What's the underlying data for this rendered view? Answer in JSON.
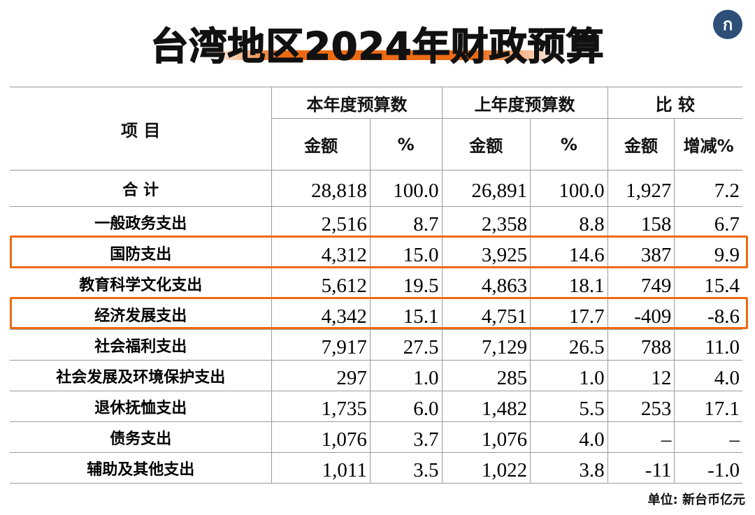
{
  "title": "台湾地区2024年财政预算",
  "unit": "单位: 新台币亿元",
  "highlight_color": "#ec6a14",
  "chart_data": {
    "type": "table",
    "header": {
      "item": "项 目",
      "groups": [
        "本年度预算数",
        "上年度预算数",
        "比 较"
      ],
      "sub": [
        "金额",
        "%",
        "金额",
        "%",
        "金额",
        "增减%"
      ]
    },
    "rows": [
      {
        "item": "合 计",
        "values": [
          "28,818",
          "100.0",
          "26,891",
          "100.0",
          "1,927",
          "7.2"
        ]
      },
      {
        "item": "一般政务支出",
        "values": [
          "2,516",
          "8.7",
          "2,358",
          "8.8",
          "158",
          "6.7"
        ]
      },
      {
        "item": "国防支出",
        "values": [
          "4,312",
          "15.0",
          "3,925",
          "14.6",
          "387",
          "9.9"
        ],
        "highlighted": true
      },
      {
        "item": "教育科学文化支出",
        "values": [
          "5,612",
          "19.5",
          "4,863",
          "18.1",
          "749",
          "15.4"
        ]
      },
      {
        "item": "经济发展支出",
        "values": [
          "4,342",
          "15.1",
          "4,751",
          "17.7",
          "-409",
          "-8.6"
        ],
        "highlighted": true
      },
      {
        "item": "社会福利支出",
        "values": [
          "7,917",
          "27.5",
          "7,129",
          "26.5",
          "788",
          "11.0"
        ]
      },
      {
        "item": "社会发展及环境保护支出",
        "values": [
          "297",
          "1.0",
          "285",
          "1.0",
          "12",
          "4.0"
        ]
      },
      {
        "item": "退休抚恤支出",
        "values": [
          "1,735",
          "6.0",
          "1,482",
          "5.5",
          "253",
          "17.1"
        ]
      },
      {
        "item": "债务支出",
        "values": [
          "1,076",
          "3.7",
          "1,076",
          "4.0",
          "–",
          "–"
        ]
      },
      {
        "item": "辅助及其他支出",
        "values": [
          "1,011",
          "3.5",
          "1,022",
          "3.8",
          "-11",
          "-1.0"
        ]
      }
    ]
  }
}
